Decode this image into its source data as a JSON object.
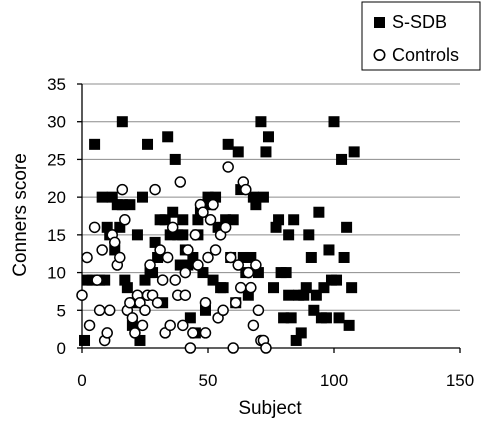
{
  "chart_data": {
    "type": "scatter",
    "xlabel": "Subject",
    "ylabel": "Conners score",
    "xlim": [
      0,
      150
    ],
    "ylim": [
      0,
      35
    ],
    "xticks": [
      0,
      50,
      100,
      150
    ],
    "yticks": [
      0,
      5,
      10,
      15,
      20,
      25,
      30,
      35
    ],
    "grid": "horizontal",
    "legend_position": "top-right",
    "series": [
      {
        "name": "S-SDB",
        "marker": "filled-square",
        "color": "#000000",
        "points": [
          [
            1,
            1
          ],
          [
            2,
            9
          ],
          [
            4,
            9
          ],
          [
            5,
            27
          ],
          [
            7,
            9
          ],
          [
            8,
            20
          ],
          [
            9,
            9
          ],
          [
            10,
            16
          ],
          [
            11,
            15
          ],
          [
            12,
            20
          ],
          [
            13,
            13
          ],
          [
            14,
            19
          ],
          [
            15,
            16
          ],
          [
            16,
            30
          ],
          [
            16,
            19
          ],
          [
            17,
            9
          ],
          [
            18,
            8
          ],
          [
            19,
            19
          ],
          [
            20,
            3
          ],
          [
            21,
            6
          ],
          [
            22,
            15
          ],
          [
            23,
            1
          ],
          [
            24,
            20
          ],
          [
            25,
            9
          ],
          [
            26,
            27
          ],
          [
            27,
            10
          ],
          [
            28,
            10
          ],
          [
            29,
            14
          ],
          [
            30,
            12
          ],
          [
            31,
            17
          ],
          [
            32,
            6
          ],
          [
            33,
            17
          ],
          [
            34,
            28
          ],
          [
            35,
            15
          ],
          [
            36,
            18
          ],
          [
            37,
            25
          ],
          [
            38,
            15
          ],
          [
            39,
            11
          ],
          [
            40,
            17
          ],
          [
            40,
            15
          ],
          [
            41,
            13
          ],
          [
            42,
            11
          ],
          [
            43,
            4
          ],
          [
            44,
            12
          ],
          [
            45,
            2
          ],
          [
            46,
            17
          ],
          [
            46,
            15
          ],
          [
            47,
            18
          ],
          [
            48,
            10
          ],
          [
            49,
            5
          ],
          [
            50,
            20
          ],
          [
            51,
            19
          ],
          [
            52,
            9
          ],
          [
            53,
            20
          ],
          [
            54,
            16
          ],
          [
            55,
            8
          ],
          [
            56,
            8
          ],
          [
            57,
            17
          ],
          [
            58,
            27
          ],
          [
            59,
            12
          ],
          [
            60,
            17
          ],
          [
            61,
            6
          ],
          [
            62,
            26
          ],
          [
            63,
            21
          ],
          [
            64,
            12
          ],
          [
            65,
            10
          ],
          [
            66,
            7
          ],
          [
            67,
            12
          ],
          [
            68,
            20
          ],
          [
            69,
            19
          ],
          [
            70,
            10
          ],
          [
            71,
            30
          ],
          [
            72,
            20
          ],
          [
            73,
            26
          ],
          [
            74,
            28
          ],
          [
            76,
            8
          ],
          [
            77,
            16
          ],
          [
            78,
            17
          ],
          [
            79,
            10
          ],
          [
            80,
            4
          ],
          [
            81,
            10
          ],
          [
            82,
            15
          ],
          [
            82,
            7
          ],
          [
            83,
            4
          ],
          [
            84,
            17
          ],
          [
            85,
            1
          ],
          [
            86,
            7
          ],
          [
            87,
            2
          ],
          [
            88,
            7
          ],
          [
            89,
            8
          ],
          [
            90,
            15
          ],
          [
            91,
            12
          ],
          [
            92,
            5
          ],
          [
            93,
            7
          ],
          [
            94,
            18
          ],
          [
            95,
            4
          ],
          [
            96,
            8
          ],
          [
            97,
            4
          ],
          [
            98,
            13
          ],
          [
            99,
            9
          ],
          [
            100,
            30
          ],
          [
            101,
            9
          ],
          [
            102,
            4
          ],
          [
            103,
            25
          ],
          [
            104,
            12
          ],
          [
            105,
            16
          ],
          [
            106,
            3
          ],
          [
            107,
            8
          ],
          [
            108,
            26
          ]
        ]
      },
      {
        "name": "Controls",
        "marker": "open-circle",
        "color": "#000000",
        "points": [
          [
            0,
            7
          ],
          [
            2,
            12
          ],
          [
            3,
            3
          ],
          [
            5,
            16
          ],
          [
            6,
            9
          ],
          [
            7,
            5
          ],
          [
            8,
            13
          ],
          [
            9,
            1
          ],
          [
            10,
            2
          ],
          [
            11,
            5
          ],
          [
            12,
            15
          ],
          [
            13,
            14
          ],
          [
            14,
            11
          ],
          [
            15,
            12
          ],
          [
            16,
            21
          ],
          [
            17,
            17
          ],
          [
            18,
            5
          ],
          [
            19,
            6
          ],
          [
            20,
            4
          ],
          [
            21,
            2
          ],
          [
            22,
            7
          ],
          [
            23,
            6
          ],
          [
            24,
            3
          ],
          [
            25,
            5
          ],
          [
            26,
            7
          ],
          [
            27,
            11
          ],
          [
            28,
            7
          ],
          [
            29,
            21
          ],
          [
            30,
            6
          ],
          [
            31,
            13
          ],
          [
            32,
            9
          ],
          [
            33,
            2
          ],
          [
            34,
            12
          ],
          [
            35,
            3
          ],
          [
            36,
            16
          ],
          [
            37,
            9
          ],
          [
            38,
            7
          ],
          [
            39,
            22
          ],
          [
            40,
            3
          ],
          [
            41,
            10
          ],
          [
            41,
            7
          ],
          [
            42,
            13
          ],
          [
            43,
            0
          ],
          [
            44,
            2
          ],
          [
            45,
            15
          ],
          [
            46,
            11
          ],
          [
            47,
            19
          ],
          [
            48,
            18
          ],
          [
            49,
            6
          ],
          [
            49,
            2
          ],
          [
            50,
            12
          ],
          [
            51,
            17
          ],
          [
            52,
            19
          ],
          [
            53,
            13
          ],
          [
            54,
            4
          ],
          [
            55,
            15
          ],
          [
            56,
            5
          ],
          [
            57,
            16
          ],
          [
            58,
            24
          ],
          [
            59,
            12
          ],
          [
            60,
            0
          ],
          [
            61,
            6
          ],
          [
            62,
            11
          ],
          [
            63,
            8
          ],
          [
            64,
            22
          ],
          [
            65,
            21
          ],
          [
            66,
            10
          ],
          [
            67,
            8
          ],
          [
            68,
            3
          ],
          [
            69,
            11
          ],
          [
            70,
            5
          ],
          [
            71,
            1
          ],
          [
            72,
            1
          ],
          [
            73,
            0
          ]
        ]
      }
    ]
  }
}
